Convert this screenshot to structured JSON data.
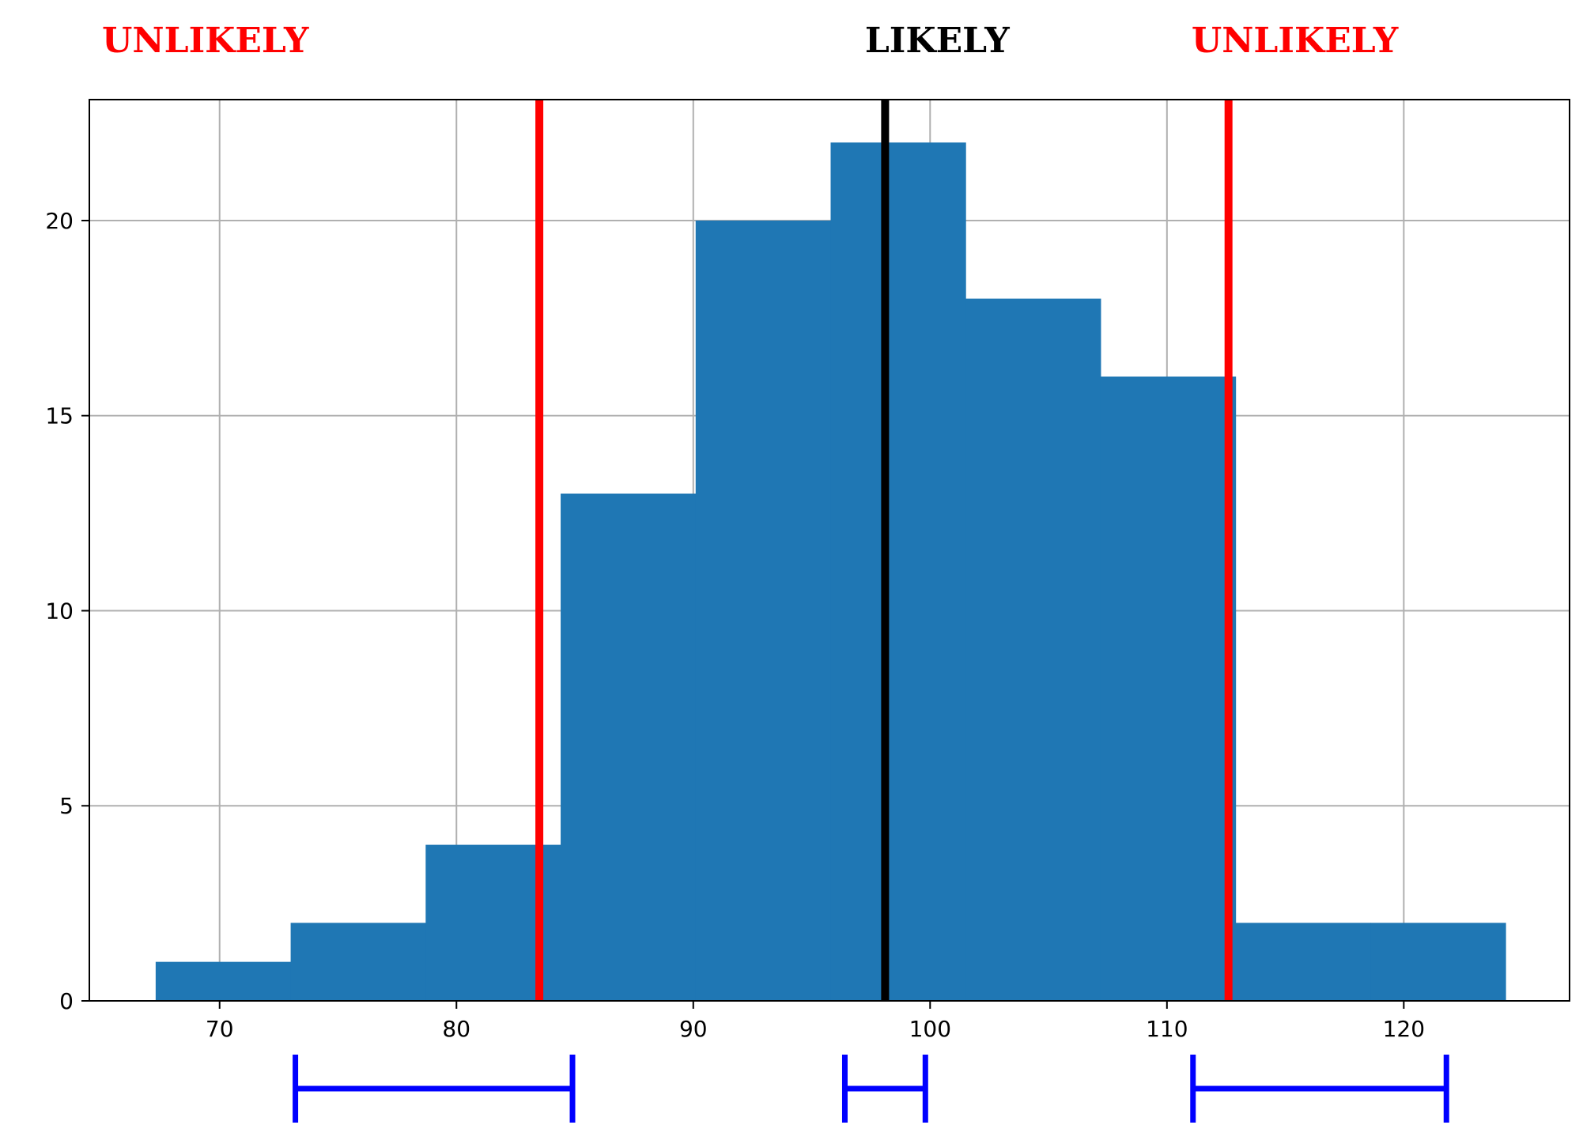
{
  "chart_data": {
    "type": "bar",
    "bin_edges": [
      67.3,
      73.0,
      78.7,
      84.4,
      90.1,
      95.8,
      101.5,
      107.2,
      112.9,
      118.6,
      124.3
    ],
    "values": [
      1,
      2,
      4,
      13,
      20,
      22,
      18,
      16,
      2,
      2
    ],
    "xlim": [
      64.5,
      127.0
    ],
    "ylim": [
      0,
      23.1
    ],
    "xticks": [
      70,
      80,
      90,
      100,
      110,
      120
    ],
    "yticks": [
      0,
      5,
      10,
      15,
      20
    ],
    "grid": true,
    "bar_color": "#1f77b4",
    "vlines": [
      {
        "x": 83.5,
        "color": "#ff0000"
      },
      {
        "x": 98.1,
        "color": "#000000"
      },
      {
        "x": 112.6,
        "color": "#ff0000"
      }
    ],
    "zone_labels": [
      {
        "text": "UNLIKELY",
        "color": "#ff0000",
        "x": 69.4
      },
      {
        "text": "LIKELY",
        "color": "#000000",
        "x": 100.3
      },
      {
        "text": "UNLIKELY",
        "color": "#ff0000",
        "x": 115.4
      }
    ],
    "intervals": [
      {
        "from": 73.2,
        "to": 84.9
      },
      {
        "from": 96.4,
        "to": 99.8
      },
      {
        "from": 111.1,
        "to": 121.8
      }
    ],
    "interval_color": "#0000ff"
  }
}
